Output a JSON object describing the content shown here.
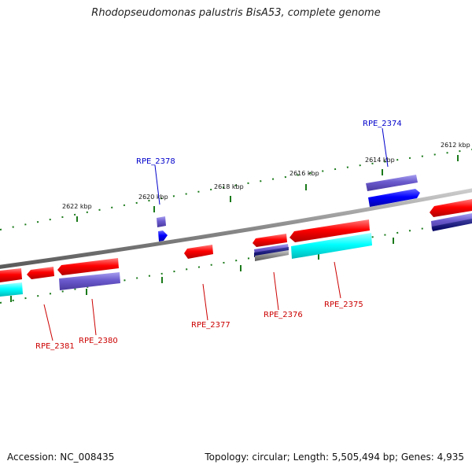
{
  "title": "Rhodopseudomonas palustris BisA53, complete genome",
  "footer": {
    "accession": "Accession: NC_008435",
    "summary": "Topology: circular; Length: 5,505,494 bp; Genes: 4,935"
  },
  "ticks": [
    "2612 kbp",
    "2614 kbp",
    "2616 kbp",
    "2618 kbp",
    "2620 kbp",
    "2622 kbp"
  ],
  "genes": [
    {
      "name": "RPE_2374",
      "color": "#0000cc"
    },
    {
      "name": "RPE_2375",
      "color": "#cc0000"
    },
    {
      "name": "RPE_2376",
      "color": "#cc0000"
    },
    {
      "name": "RPE_2377",
      "color": "#cc0000"
    },
    {
      "name": "RPE_2378",
      "color": "#0000cc"
    },
    {
      "name": "RPE_2380",
      "color": "#cc0000"
    },
    {
      "name": "RPE_2381",
      "color": "#cc0000"
    }
  ],
  "colors": {
    "backbone": "#888888",
    "cds_forward": "#ff0000",
    "cds_reverse": "#0000ff",
    "rna": "#00ffff",
    "protein": "#6a5acd",
    "tick": "#1a7a1a"
  }
}
